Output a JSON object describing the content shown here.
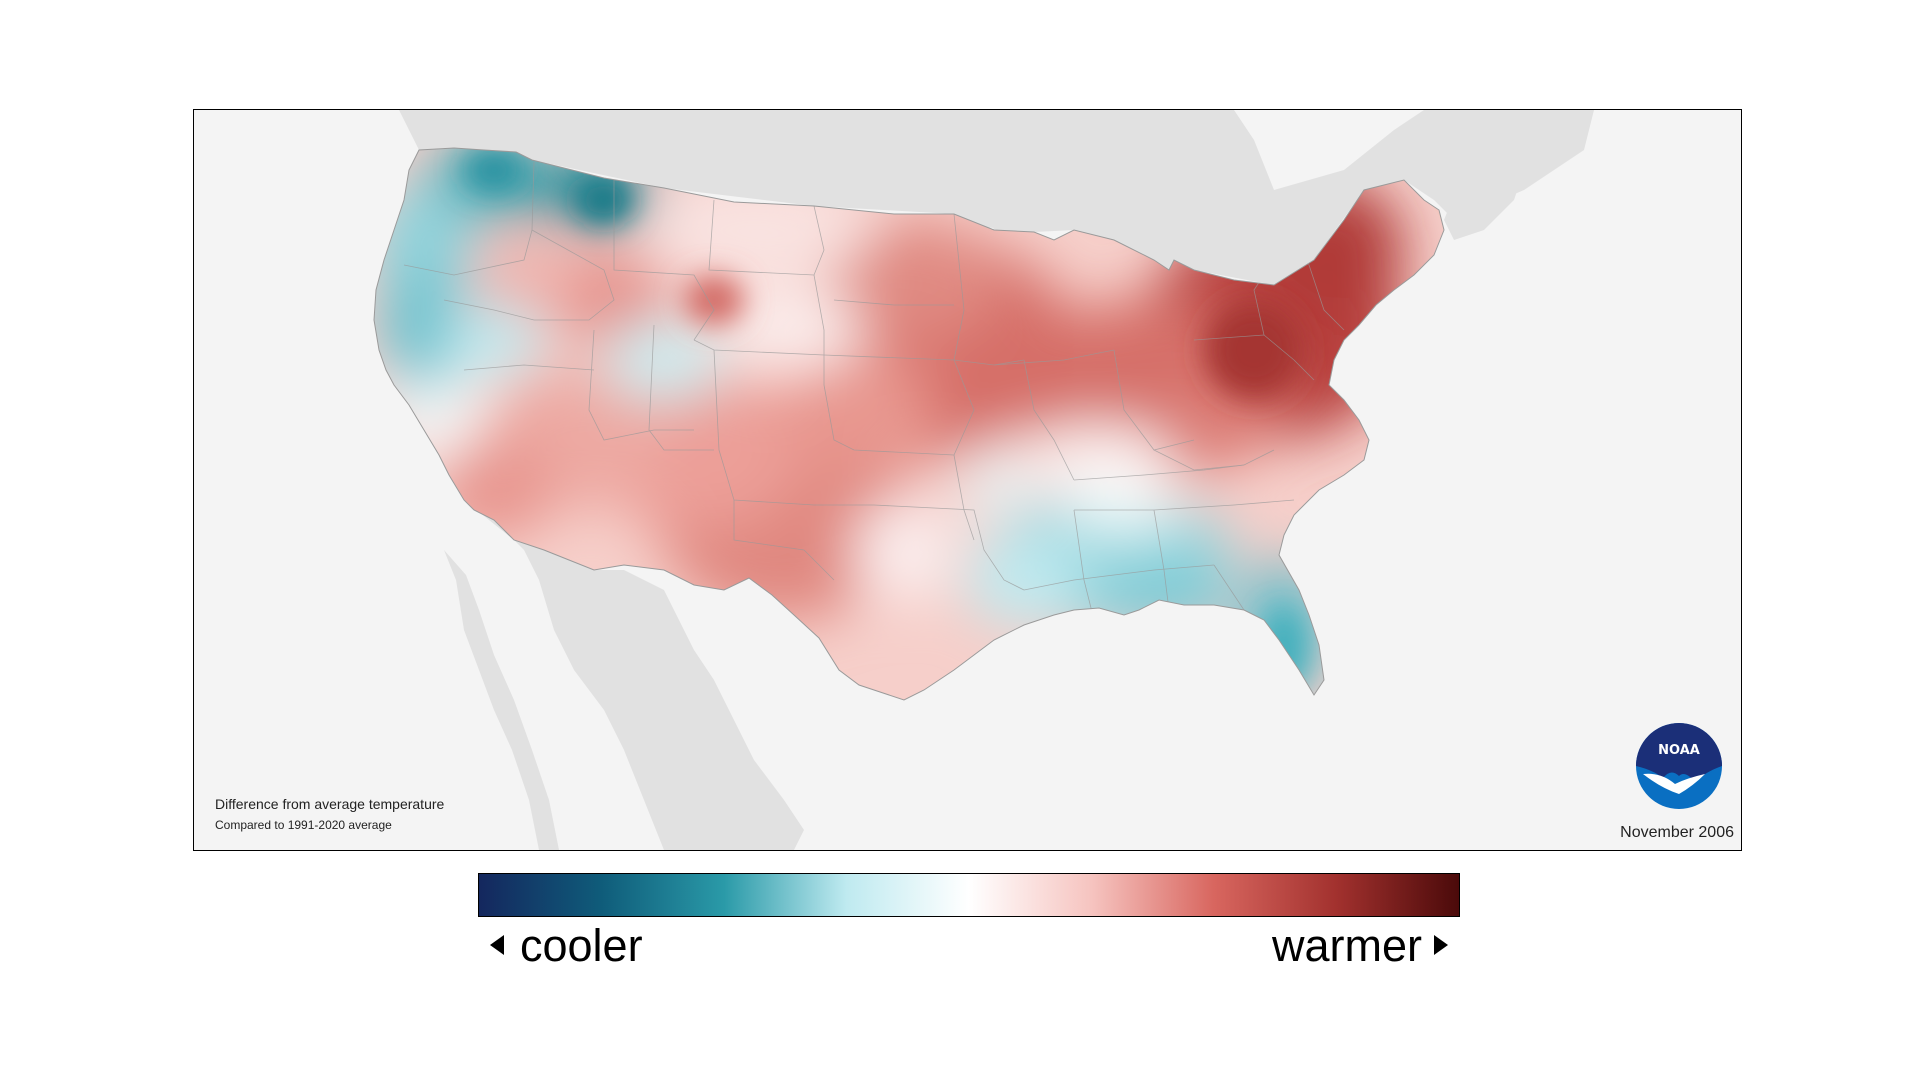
{
  "map": {
    "caption_title": "Difference from average temperature",
    "caption_subtitle": "Compared to 1991-2020 average",
    "date": "November 2006",
    "logo_text": "NOAA"
  },
  "legend": {
    "low_label": "cooler",
    "high_label": "warmer",
    "colors": [
      "#14275e",
      "#0f5c7a",
      "#2a9aa8",
      "#bfeaf0",
      "#ffffff",
      "#f6c4c0",
      "#d8665f",
      "#a2312e",
      "#4b0a0a"
    ]
  },
  "palette": {
    "land_background": "#f4f4f4",
    "neighbor_land": "#e1e1e1",
    "ocean": "#f4f4f4",
    "warm_light": "#f3bcb6",
    "warm_mid": "#e08a82",
    "warm_dark": "#b8403d",
    "cool_light": "#bfeaf0",
    "cool_mid": "#6cc3cf",
    "cool_dark": "#1d8895"
  }
}
